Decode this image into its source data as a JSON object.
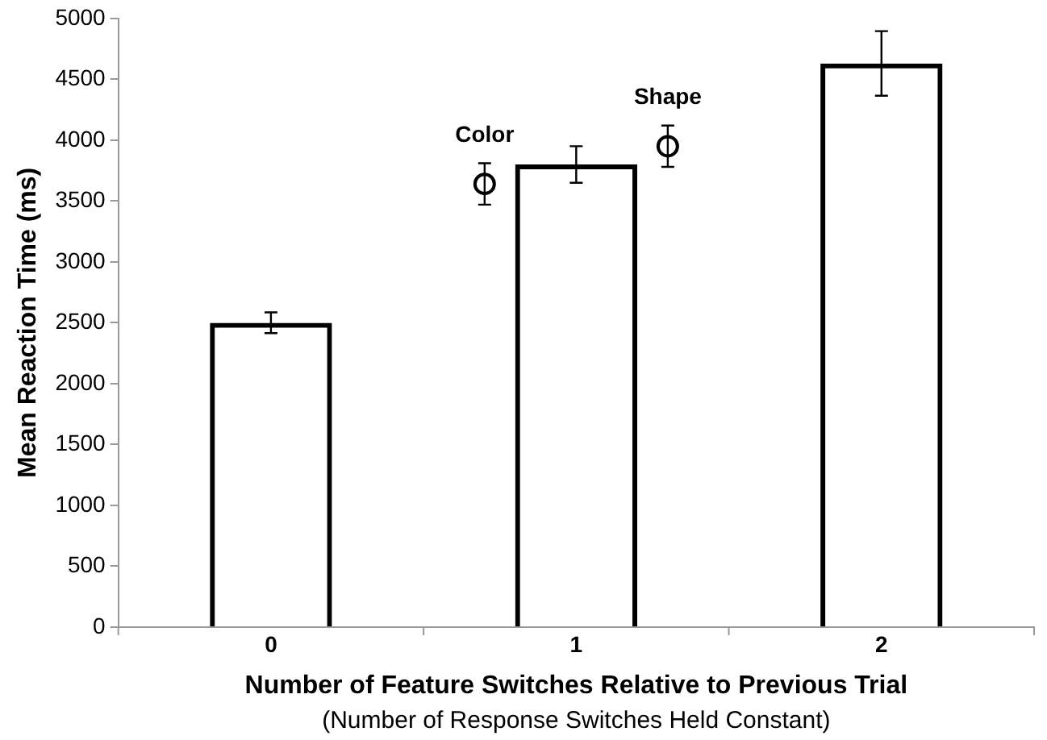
{
  "chart_data": {
    "type": "bar",
    "xlabel": "Number of Feature Switches Relative to Previous Trial",
    "ylabel": "Mean Reaction Time (ms)",
    "annotations": [
      "(Number of Response Switches Held Constant)"
    ],
    "categories": [
      "0",
      "1",
      "2"
    ],
    "series": [
      {
        "color": "#000000",
        "values": [
          2500,
          3800,
          4630
        ],
        "errors": [
          85,
          150,
          265
        ]
      },
      {
        "type": "scatter",
        "name": "Color",
        "color": "#000000",
        "x": [
          "1"
        ],
        "values": [
          3640
        ],
        "errors": [
          170
        ]
      },
      {
        "type": "scatter",
        "name": "Shape",
        "color": "#000000",
        "x": [
          "1"
        ],
        "values": [
          3950
        ],
        "errors": [
          170
        ]
      }
    ],
    "ylim": [
      0,
      5000
    ],
    "yticks": [
      0,
      500,
      1000,
      1500,
      2000,
      2500,
      3000,
      3500,
      4000,
      4500,
      5000
    ],
    "grid": false,
    "legend": false,
    "marker": "circle"
  }
}
